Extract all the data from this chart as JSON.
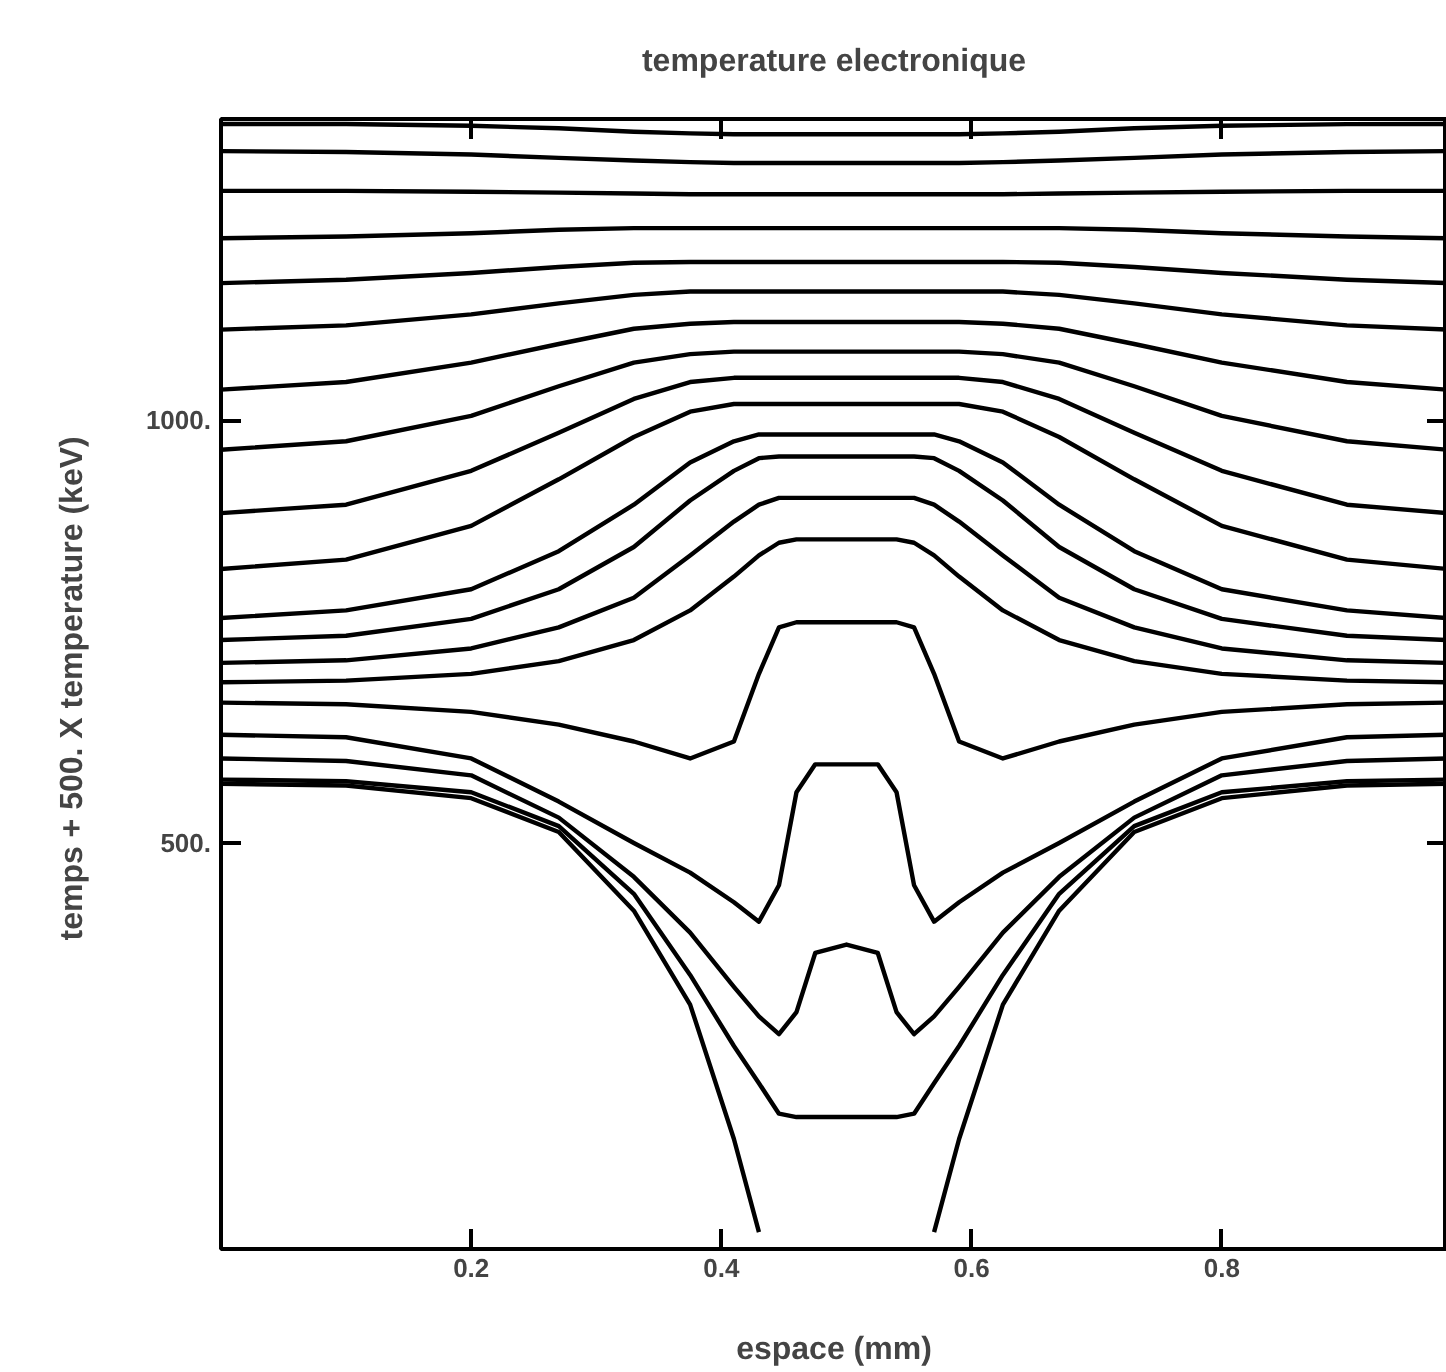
{
  "chart_data": {
    "type": "line",
    "title": "temperature electronique",
    "xlabel": "espace (mm)",
    "ylabel": "temps +  500. X temperature (keV)",
    "x": [
      0,
      0.1,
      0.2,
      0.27,
      0.33,
      0.375,
      0.41,
      0.43,
      0.446,
      0.46,
      0.475,
      0.5,
      0.525,
      0.54,
      0.554,
      0.57,
      0.59,
      0.625,
      0.67,
      0.73,
      0.8,
      0.9,
      0.98
    ],
    "xlim": [
      0,
      0.98
    ],
    "xticks": [
      0.2,
      0.4,
      0.6,
      0.8
    ],
    "ylim": [
      20,
      1356
    ],
    "yticks": [
      {
        "value": 500,
        "label": "500."
      },
      {
        "value": 1000,
        "label": "1000."
      }
    ],
    "grid": false,
    "marker": "none",
    "line_style": "solid",
    "series": [
      {
        "color": "#000000",
        "values": [
          1350,
          1350,
          1348,
          1345,
          1341,
          1339,
          1338,
          1338,
          1338,
          1338,
          1338,
          1338,
          1338,
          1338,
          1338,
          1338,
          1338,
          1339,
          1341,
          1345,
          1348,
          1350,
          1350
        ]
      },
      {
        "color": "#000000",
        "values": [
          1318,
          1317,
          1314,
          1310,
          1307,
          1305,
          1304,
          1304,
          1304,
          1304,
          1304,
          1304,
          1304,
          1304,
          1304,
          1304,
          1304,
          1305,
          1307,
          1310,
          1314,
          1317,
          1318
        ]
      },
      {
        "color": "#000000",
        "values": [
          1271,
          1271,
          1270,
          1269,
          1268,
          1267,
          1267,
          1267,
          1267,
          1267,
          1267,
          1267,
          1267,
          1267,
          1267,
          1267,
          1267,
          1267,
          1268,
          1269,
          1270,
          1271,
          1271
        ]
      },
      {
        "color": "#000000",
        "values": [
          1215,
          1217,
          1221,
          1225,
          1227,
          1227,
          1227,
          1227,
          1227,
          1227,
          1227,
          1227,
          1227,
          1227,
          1227,
          1227,
          1227,
          1227,
          1227,
          1225,
          1221,
          1217,
          1215
        ]
      },
      {
        "color": "#000000",
        "values": [
          1162,
          1166,
          1174,
          1181,
          1186,
          1187,
          1187,
          1187,
          1187,
          1187,
          1187,
          1187,
          1187,
          1187,
          1187,
          1187,
          1187,
          1187,
          1186,
          1181,
          1174,
          1166,
          1162
        ]
      },
      {
        "color": "#000000",
        "values": [
          1107,
          1112,
          1125,
          1138,
          1148,
          1152,
          1152,
          1152,
          1152,
          1152,
          1152,
          1152,
          1152,
          1152,
          1152,
          1152,
          1152,
          1152,
          1148,
          1138,
          1125,
          1112,
          1107
        ]
      },
      {
        "color": "#000000",
        "values": [
          1036,
          1045,
          1068,
          1090,
          1108,
          1114,
          1116,
          1116,
          1116,
          1116,
          1116,
          1116,
          1116,
          1116,
          1116,
          1116,
          1116,
          1114,
          1108,
          1090,
          1068,
          1045,
          1036
        ]
      },
      {
        "color": "#000000",
        "values": [
          965,
          975,
          1005,
          1040,
          1068,
          1078,
          1081,
          1081,
          1081,
          1081,
          1081,
          1081,
          1081,
          1081,
          1081,
          1081,
          1081,
          1078,
          1068,
          1040,
          1005,
          975,
          965
        ]
      },
      {
        "color": "#000000",
        "values": [
          890,
          900,
          940,
          985,
          1025,
          1045,
          1050,
          1050,
          1050,
          1050,
          1050,
          1050,
          1050,
          1050,
          1050,
          1050,
          1050,
          1045,
          1025,
          985,
          940,
          900,
          890
        ]
      },
      {
        "color": "#000000",
        "values": [
          824,
          835,
          875,
          930,
          980,
          1010,
          1019,
          1019,
          1019,
          1019,
          1019,
          1019,
          1019,
          1019,
          1019,
          1019,
          1019,
          1010,
          980,
          930,
          875,
          835,
          824
        ]
      },
      {
        "color": "#000000",
        "values": [
          766,
          775,
          800,
          845,
          900,
          950,
          975,
          983,
          983,
          983,
          983,
          983,
          983,
          983,
          983,
          983,
          975,
          950,
          900,
          845,
          800,
          775,
          766
        ]
      },
      {
        "color": "#000000",
        "values": [
          740,
          745,
          765,
          800,
          850,
          905,
          940,
          955,
          957,
          957,
          957,
          957,
          957,
          957,
          957,
          955,
          940,
          905,
          850,
          800,
          765,
          745,
          740
        ]
      },
      {
        "color": "#000000",
        "values": [
          713,
          716,
          730,
          755,
          790,
          840,
          880,
          900,
          908,
          908,
          908,
          908,
          908,
          908,
          908,
          900,
          880,
          840,
          790,
          755,
          730,
          716,
          713
        ]
      },
      {
        "color": "#000000",
        "values": [
          690,
          692,
          700,
          715,
          740,
          775,
          815,
          840,
          855,
          859,
          859,
          859,
          859,
          859,
          855,
          840,
          815,
          775,
          740,
          715,
          700,
          692,
          690
        ]
      },
      {
        "color": "#000000",
        "values": [
          666,
          664,
          655,
          640,
          620,
          600,
          620,
          700,
          755,
          761,
          761,
          761,
          761,
          761,
          755,
          700,
          620,
          600,
          620,
          640,
          655,
          664,
          666
        ]
      },
      {
        "color": "#000000",
        "values": [
          628,
          625,
          600,
          549,
          500,
          465,
          430,
          407,
          450,
          560,
          593,
          593,
          593,
          560,
          450,
          407,
          430,
          465,
          500,
          549,
          600,
          625,
          628
        ]
      },
      {
        "color": "#000000",
        "values": [
          600,
          597,
          580,
          530,
          460,
          394,
          330,
          295,
          274,
          300,
          370,
          380,
          370,
          300,
          274,
          295,
          330,
          394,
          460,
          530,
          580,
          597,
          600
        ]
      },
      {
        "color": "#000000",
        "values": [
          575,
          573,
          560,
          520,
          440,
          344,
          260,
          216,
          180,
          176,
          176,
          176,
          176,
          176,
          180,
          216,
          260,
          344,
          440,
          520,
          560,
          573,
          575
        ]
      },
      {
        "color": "#000000",
        "values": [
          570,
          568,
          553,
          513,
          420,
          309,
          150,
          40,
          null,
          null,
          null,
          null,
          null,
          null,
          null,
          40,
          150,
          309,
          420,
          513,
          553,
          568,
          570
        ]
      }
    ]
  }
}
